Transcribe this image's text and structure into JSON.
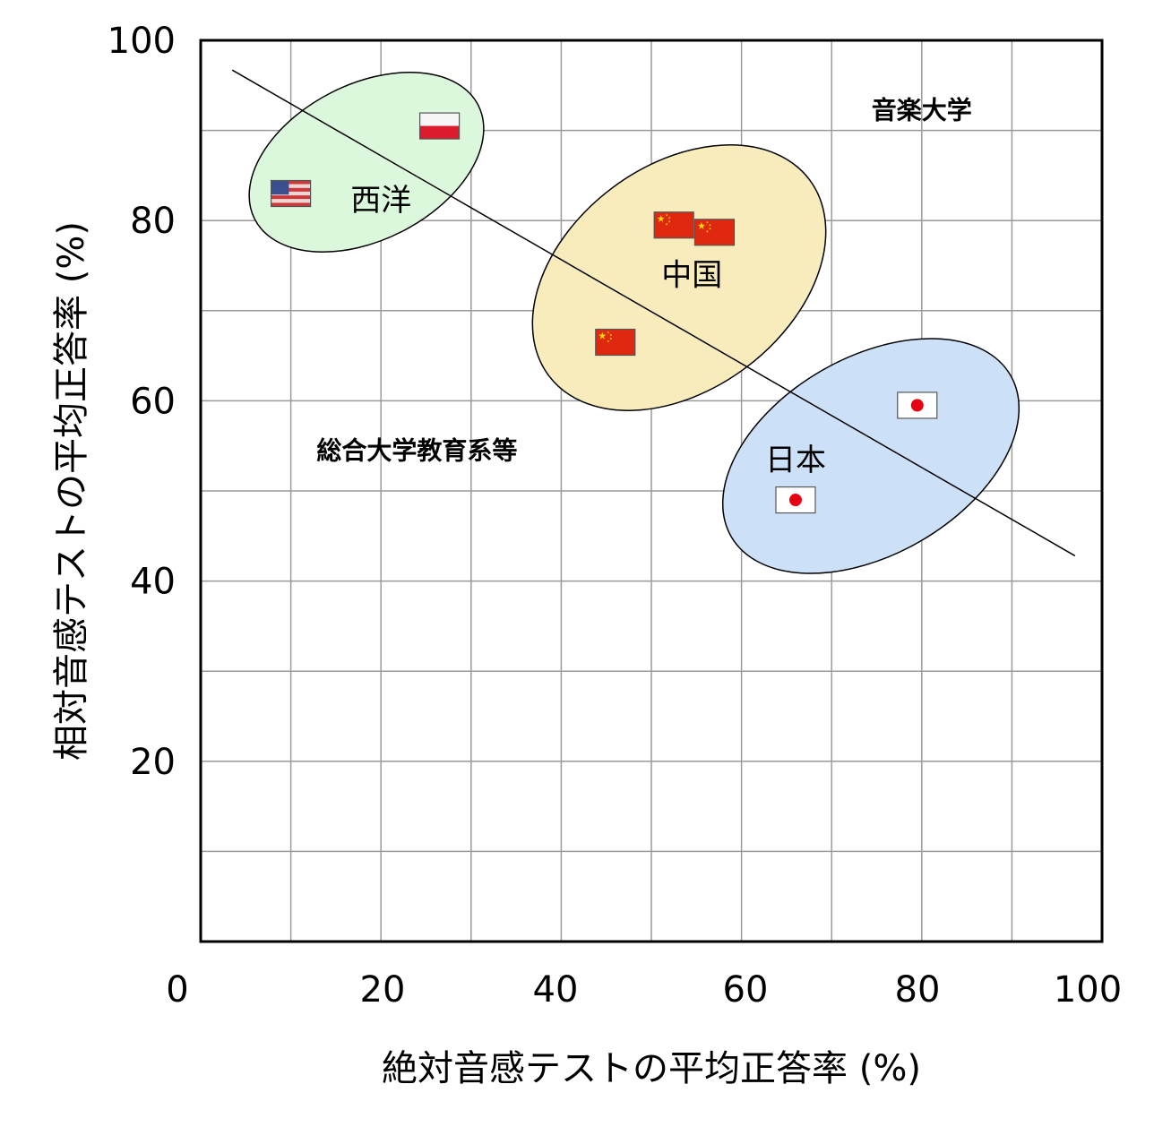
{
  "chart_data": {
    "type": "scatter",
    "title": "",
    "xlabel": "絶対音感テストの平均正答率 (%)",
    "ylabel": "相対音感テストの平均正答率 (%)",
    "xlim": [
      0,
      100
    ],
    "ylim": [
      0,
      100
    ],
    "x_ticks": [
      "0",
      "20",
      "40",
      "60",
      "80",
      "100"
    ],
    "y_ticks": [
      "20",
      "40",
      "60",
      "80",
      "100"
    ],
    "grid": true,
    "grid_step": 10,
    "points": [
      {
        "country": "USA",
        "x": 10,
        "y": 83,
        "flag": "usa-flag"
      },
      {
        "country": "Poland",
        "x": 26.5,
        "y": 90.5,
        "flag": "poland-flag"
      },
      {
        "country": "China",
        "x": 52.5,
        "y": 79.5,
        "flag": "china-flag"
      },
      {
        "country": "China",
        "x": 57,
        "y": 78.7,
        "flag": "china-flag"
      },
      {
        "country": "China",
        "x": 46,
        "y": 66.5,
        "flag": "china-flag"
      },
      {
        "country": "Japan",
        "x": 79.5,
        "y": 59.5,
        "flag": "japan-flag"
      },
      {
        "country": "Japan",
        "x": 66,
        "y": 49,
        "flag": "japan-flag"
      }
    ],
    "groups": [
      {
        "name": "西洋",
        "color": "#dcf8dc",
        "label_x": 20,
        "label_y": 82.3
      },
      {
        "name": "中国",
        "color": "#f8ecbc",
        "label_x": 54.5,
        "label_y": 74
      },
      {
        "name": "日本",
        "color": "#cce0f8",
        "label_x": 66,
        "label_y": 53.5
      }
    ],
    "categories_text": [
      {
        "text": "音楽大学",
        "x": 80,
        "y": 92.3
      },
      {
        "text": "総合大学教育系等",
        "x": 24,
        "y": 54.5
      }
    ],
    "trend_line": {
      "from": [
        3.5,
        96.7
      ],
      "to": [
        97,
        42.8
      ]
    }
  }
}
